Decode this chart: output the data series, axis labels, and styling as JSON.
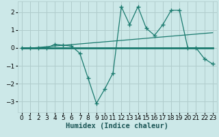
{
  "xlabel": "Humidex (Indice chaleur)",
  "bg_color": "#cce8e8",
  "grid_color": "#b0cccc",
  "line_color": "#1a7a6e",
  "xlim": [
    -0.5,
    23.5
  ],
  "ylim": [
    -3.6,
    2.6
  ],
  "xticks": [
    0,
    1,
    2,
    3,
    4,
    5,
    6,
    7,
    8,
    9,
    10,
    11,
    12,
    13,
    14,
    15,
    16,
    17,
    18,
    19,
    20,
    21,
    22,
    23
  ],
  "yticks": [
    -3,
    -2,
    -1,
    0,
    1,
    2
  ],
  "series1_x": [
    0,
    1,
    2,
    3,
    4,
    5,
    6,
    7,
    8,
    9,
    10,
    11,
    12,
    13,
    14,
    15,
    16,
    17,
    18,
    19,
    20,
    21,
    22,
    23
  ],
  "series1_y": [
    0.0,
    0.0,
    0.0,
    0.0,
    0.2,
    0.15,
    0.1,
    -0.3,
    -1.7,
    -3.1,
    -2.3,
    -1.4,
    2.3,
    1.3,
    2.3,
    1.1,
    0.7,
    1.3,
    2.1,
    2.1,
    0.0,
    0.0,
    -0.6,
    -0.9
  ],
  "series2_x": [
    0,
    23
  ],
  "series2_y": [
    0.0,
    0.0
  ],
  "series3_x": [
    0,
    23
  ],
  "series3_y": [
    -0.05,
    0.85
  ],
  "tick_fontsize": 6.5,
  "label_fontsize": 7.5
}
